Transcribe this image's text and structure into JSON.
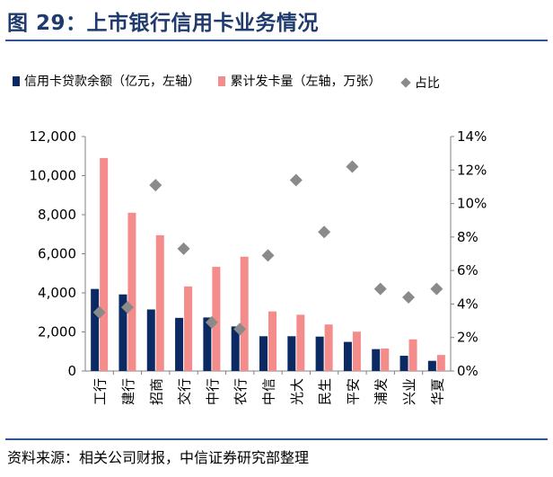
{
  "figure": {
    "title": "图 29：上市银行信用卡业务情况",
    "source": "资料来源：相关公司财报，中信证券研究部整理"
  },
  "colors": {
    "loans": "#0b2a63",
    "cards": "#f48c8c",
    "ratio": "#8a8a8a",
    "title": "#1f3a6d",
    "rule": "#2f5597"
  },
  "chart_data": {
    "type": "bar",
    "categories": [
      "工行",
      "建行",
      "招商",
      "交行",
      "中行",
      "农行",
      "中信",
      "光大",
      "民生",
      "平安",
      "浦发",
      "兴业",
      "华夏"
    ],
    "series": [
      {
        "name": "信用卡贷款余额（亿元，左轴）",
        "type": "bar",
        "axis": "left",
        "values": [
          4200,
          3920,
          3150,
          2720,
          2740,
          2280,
          1780,
          1780,
          1760,
          1490,
          1120,
          780,
          520
        ]
      },
      {
        "name": "累计发卡量（左轴，万张）",
        "type": "bar",
        "axis": "left",
        "values": [
          10900,
          8100,
          6950,
          4330,
          5330,
          5850,
          3050,
          2880,
          2380,
          2010,
          1150,
          1620,
          820
        ]
      },
      {
        "name": "占比",
        "type": "scatter",
        "axis": "right",
        "values": [
          3.5,
          3.8,
          11.1,
          7.3,
          2.9,
          2.5,
          6.9,
          11.4,
          8.3,
          12.2,
          4.9,
          4.4,
          4.9
        ]
      }
    ],
    "y_left": {
      "min": 0,
      "max": 12000,
      "ticks": [
        "0",
        "2,000",
        "4,000",
        "6,000",
        "8,000",
        "10,000",
        "12,000"
      ]
    },
    "y_right": {
      "min": 0,
      "max": 14,
      "ticks": [
        "0%",
        "2%",
        "4%",
        "6%",
        "8%",
        "10%",
        "12%",
        "14%"
      ]
    },
    "legend_position": "top",
    "grid": false
  }
}
